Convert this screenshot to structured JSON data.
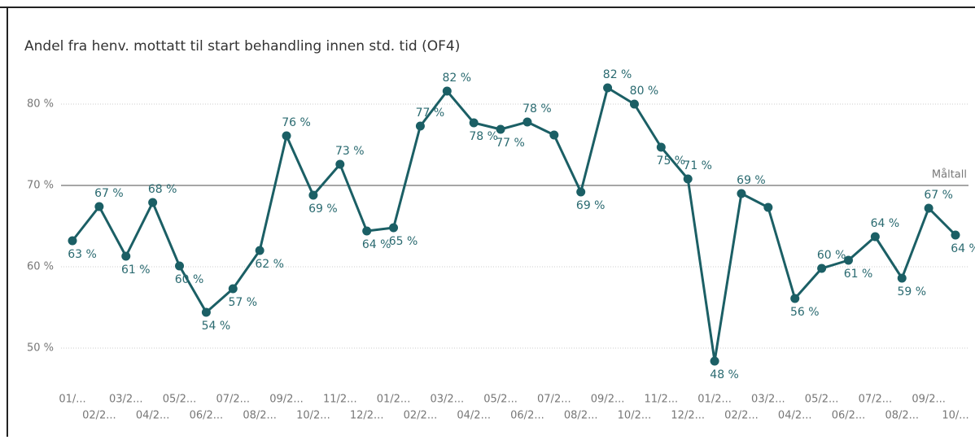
{
  "chart_data": {
    "type": "line",
    "title": "Andel fra henv. mottatt til start behandling innen std. tid (OF4)",
    "categories": [
      "01/...",
      "02/2...",
      "03/2...",
      "04/2...",
      "05/2...",
      "06/2...",
      "07/2...",
      "08/2...",
      "09/2...",
      "10/2...",
      "11/2...",
      "12/2...",
      "01/2...",
      "02/2...",
      "03/2...",
      "04/2...",
      "05/2...",
      "06/2...",
      "07/2...",
      "08/2...",
      "09/2...",
      "10/2...",
      "11/2...",
      "12/2...",
      "01/2...",
      "02/2...",
      "03/2...",
      "04/2...",
      "05/2...",
      "06/2...",
      "07/2...",
      "08/2...",
      "09/2...",
      "10/..."
    ],
    "series": [
      {
        "name": "Andel",
        "color": "#1b5f65",
        "values": [
          63.2,
          67.4,
          61.3,
          67.9,
          60.1,
          54.4,
          57.3,
          62.0,
          76.1,
          68.8,
          72.6,
          64.4,
          64.8,
          77.3,
          81.6,
          77.7,
          76.9,
          77.8,
          76.2,
          69.2,
          82.0,
          80.0,
          74.7,
          70.8,
          48.4,
          69.0,
          67.3,
          56.1,
          59.8,
          60.8,
          63.7,
          58.6,
          67.2,
          63.9
        ],
        "value_labels": [
          "63 %",
          "67 %",
          "61 %",
          "68 %",
          "60 %",
          "54 %",
          "57 %",
          "62 %",
          "76 %",
          "69 %",
          "73 %",
          "64 %",
          "65 %",
          "77 %",
          "82 %",
          "78 %",
          "77 %",
          "78 %",
          null,
          "69 %",
          "82 %",
          "80 %",
          "75 %",
          "71 %",
          "48 %",
          "69 %",
          null,
          "56 %",
          "60 %",
          "61 %",
          "64 %",
          "59 %",
          "67 %",
          "64 %"
        ]
      }
    ],
    "ylim": [
      45.8,
      84.3
    ],
    "yticks": [
      {
        "value": 50,
        "label": "50 %"
      },
      {
        "value": 60,
        "label": "60 %"
      },
      {
        "value": 70,
        "label": "70 %"
      },
      {
        "value": 80,
        "label": "80 %"
      }
    ],
    "grid": true,
    "reference_line": {
      "value": 70,
      "label": "Måltall",
      "color": "#888888"
    }
  }
}
